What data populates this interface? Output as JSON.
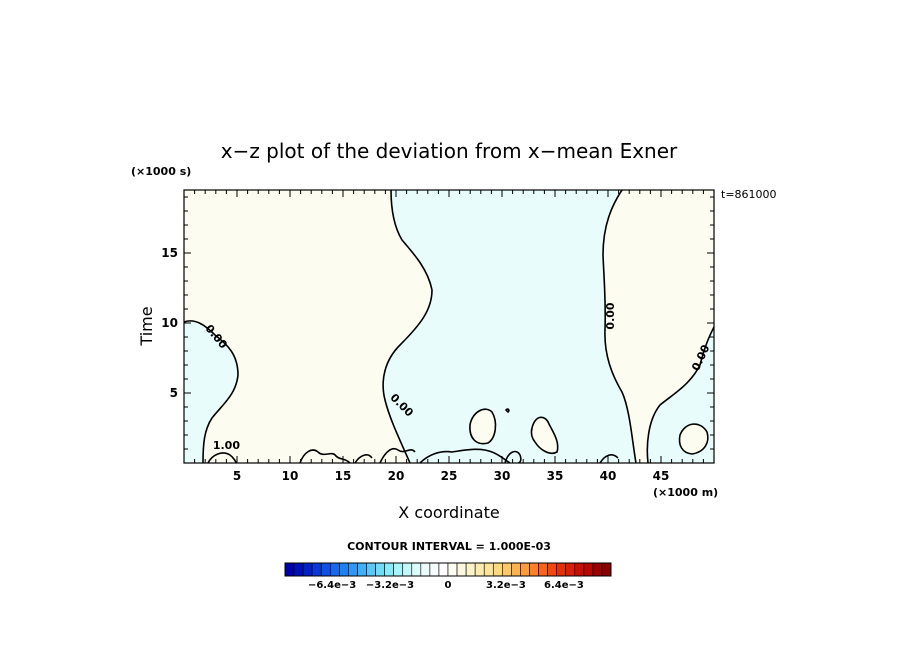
{
  "chart_data": {
    "type": "contour",
    "title": "x−z plot of the deviation from x−mean Exner",
    "xlabel": "X coordinate",
    "ylabel": "Time",
    "x_unit": "(×1000 m)",
    "y_unit": "(×1000 s)",
    "time_stamp": "t=861000",
    "xlim": [
      0,
      50
    ],
    "ylim": [
      0,
      19.5
    ],
    "xticks": [
      5,
      10,
      15,
      20,
      25,
      30,
      35,
      40,
      45
    ],
    "yticks": [
      5,
      10,
      15
    ],
    "contour_interval_text": "CONTOUR INTERVAL = 1.000E-03",
    "contour_labels": [
      {
        "text": "0.00",
        "x": 3.0,
        "y": 9.0,
        "angle": 50
      },
      {
        "text": "0.00",
        "x": 20.5,
        "y": 4.1,
        "angle": 45
      },
      {
        "text": "0.00",
        "x": 40.3,
        "y": 10.5,
        "angle": -90
      },
      {
        "text": "0.00",
        "x": 48.8,
        "y": 7.5,
        "angle": -65
      },
      {
        "text": "1.00",
        "x": 4.0,
        "y": 1.2,
        "angle": 0
      }
    ],
    "regions": [
      {
        "name": "negative",
        "fill": "#e8fcfc"
      },
      {
        "name": "positive",
        "fill": "#fdfcf0"
      }
    ],
    "colorbar": {
      "colors": [
        "#0000aa",
        "#0010b8",
        "#0020c8",
        "#0838d8",
        "#1050e4",
        "#1868ec",
        "#2080f0",
        "#3098f4",
        "#40b0f8",
        "#58c8f8",
        "#70dcf8",
        "#88ecf8",
        "#a8f4f8",
        "#c4f8f8",
        "#dcfcfc",
        "#ecfcfc",
        "#f4fcfc",
        "#ffffff",
        "#fcfcf0",
        "#fcf8e0",
        "#fcf4c8",
        "#fcecb0",
        "#fce498",
        "#fcd880",
        "#fcc868",
        "#fcb450",
        "#fc9c3c",
        "#fc8028",
        "#f86418",
        "#f04810",
        "#e43008",
        "#d82008",
        "#c81000",
        "#b40800",
        "#9c0000",
        "#880000"
      ],
      "tick_labels": [
        {
          "text": "−6.4e−3",
          "value": -6.4
        },
        {
          "text": "−3.2e−3",
          "value": -3.2
        },
        {
          "text": "0",
          "value": 0
        },
        {
          "text": "3.2e−3",
          "value": 3.2
        },
        {
          "text": "6.4e−3",
          "value": 6.4
        }
      ],
      "range": [
        -9.0,
        9.0
      ]
    }
  }
}
